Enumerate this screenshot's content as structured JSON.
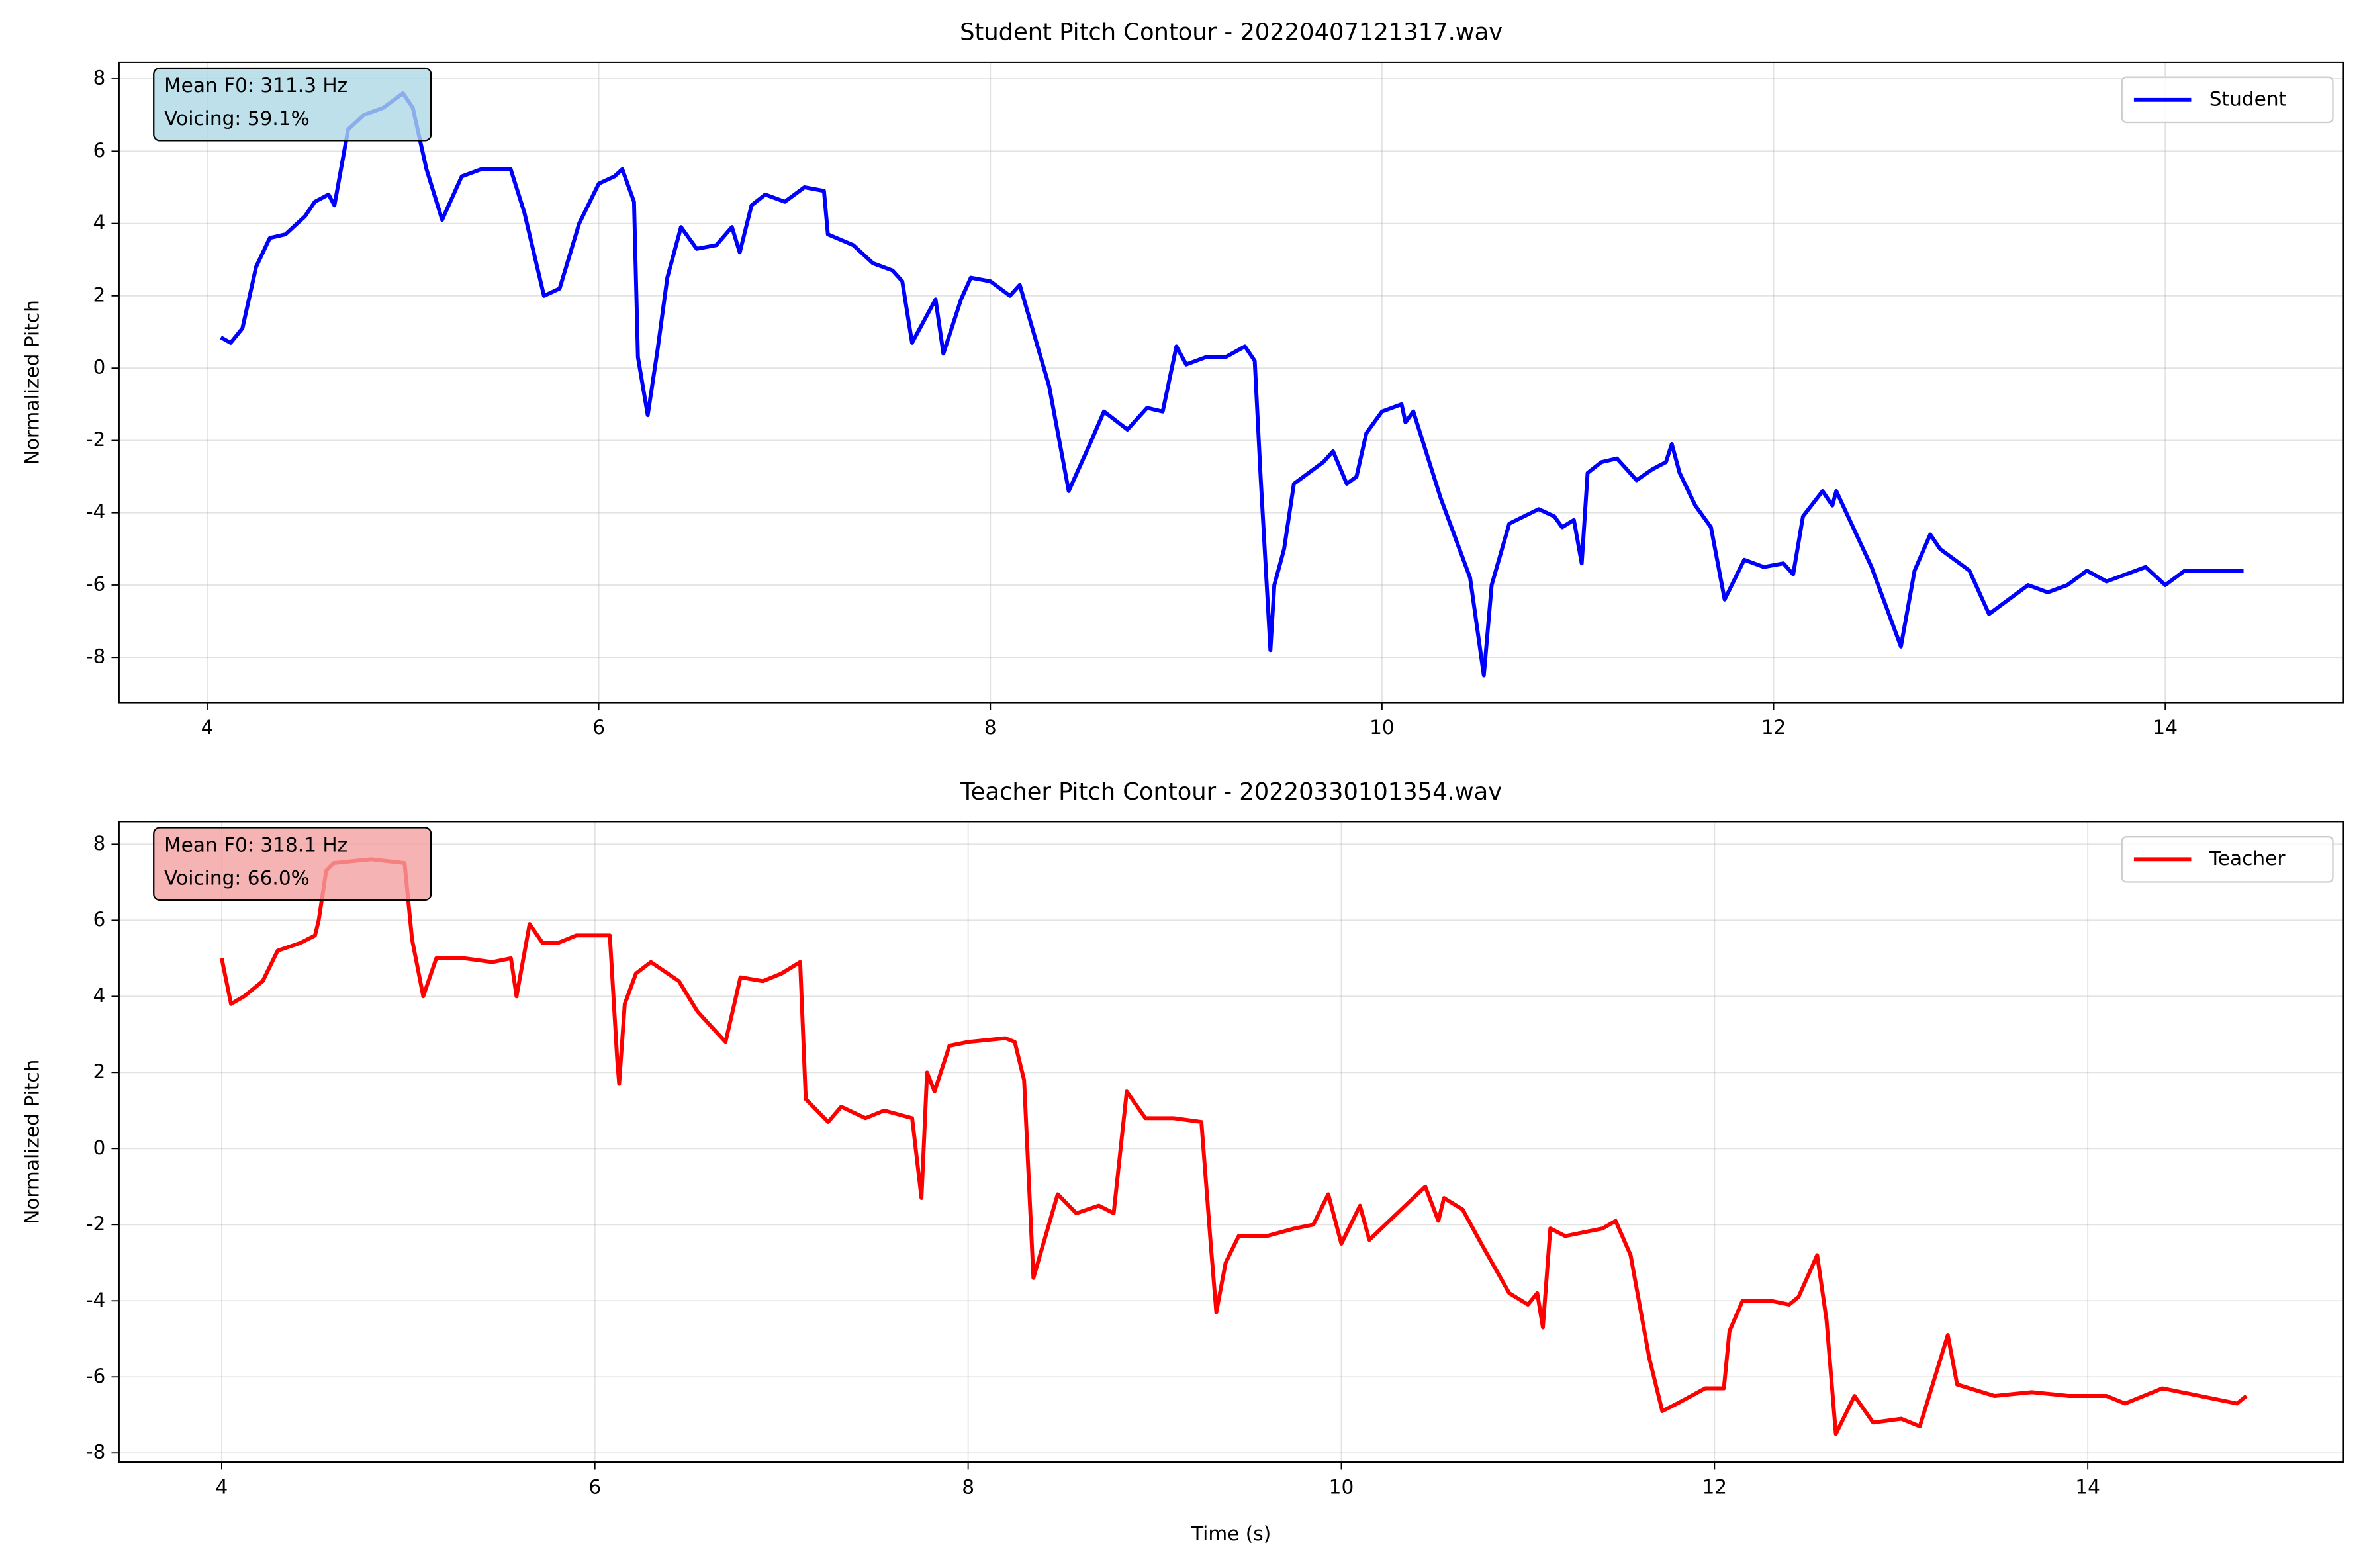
{
  "chart_data": [
    {
      "type": "line",
      "title": "Student Pitch Contour - 20220407121317.wav",
      "ylabel": "Normalized Pitch",
      "annotations": [
        "Mean F0: 311.3 Hz",
        "Voicing: 59.1%"
      ],
      "annotation_color": "#add8e6",
      "legend": "upper right",
      "grid": true,
      "xlim": [
        3.55,
        14.91
      ],
      "xticks": [
        4,
        6,
        8,
        10,
        12,
        14
      ],
      "ylim": [
        -9.25,
        8.46
      ],
      "yticks": [
        -8,
        -6,
        -4,
        -2,
        0,
        2,
        4,
        6,
        8
      ],
      "x": [
        4.07,
        4.12,
        4.18,
        4.25,
        4.32,
        4.4,
        4.5,
        4.55,
        4.62,
        4.65,
        4.72,
        4.8,
        4.9,
        5.0,
        5.05,
        5.12,
        5.2,
        5.3,
        5.4,
        5.55,
        5.62,
        5.72,
        5.8,
        5.9,
        6.0,
        6.08,
        6.12,
        6.18,
        6.2,
        6.25,
        6.3,
        6.35,
        6.42,
        6.5,
        6.6,
        6.68,
        6.72,
        6.78,
        6.85,
        6.95,
        7.05,
        7.15,
        7.17,
        7.3,
        7.4,
        7.5,
        7.55,
        7.6,
        7.72,
        7.76,
        7.85,
        7.9,
        8.0,
        8.1,
        8.15,
        8.3,
        8.4,
        8.5,
        8.58,
        8.7,
        8.8,
        8.88,
        8.95,
        9.0,
        9.1,
        9.2,
        9.3,
        9.35,
        9.38,
        9.43,
        9.45,
        9.5,
        9.55,
        9.6,
        9.7,
        9.75,
        9.82,
        9.87,
        9.92,
        10.0,
        10.1,
        10.12,
        10.16,
        10.3,
        10.45,
        10.52,
        10.56,
        10.65,
        10.8,
        10.88,
        10.92,
        10.98,
        11.02,
        11.05,
        11.12,
        11.2,
        11.3,
        11.38,
        11.45,
        11.48,
        11.52,
        11.6,
        11.68,
        11.75,
        11.85,
        11.95,
        12.05,
        12.1,
        12.15,
        12.25,
        12.3,
        12.32,
        12.5,
        12.65,
        12.72,
        12.8,
        12.85,
        13.0,
        13.1,
        13.2,
        13.3,
        13.4,
        13.5,
        13.6,
        13.7,
        13.8,
        13.9,
        14.0,
        14.1,
        14.2,
        14.3,
        14.4
      ],
      "series": [
        {
          "name": "Student",
          "color": "#0000ff",
          "values": [
            0.85,
            0.7,
            1.1,
            2.8,
            3.6,
            3.7,
            4.2,
            4.6,
            4.8,
            4.5,
            6.6,
            7.0,
            7.2,
            7.6,
            7.2,
            5.5,
            4.1,
            5.3,
            5.5,
            5.5,
            4.3,
            2.0,
            2.2,
            4.0,
            5.1,
            5.3,
            5.5,
            4.6,
            0.3,
            -1.3,
            0.5,
            2.5,
            3.9,
            3.3,
            3.4,
            3.9,
            3.2,
            4.5,
            4.8,
            4.6,
            5.0,
            4.9,
            3.7,
            3.4,
            2.9,
            2.7,
            2.4,
            0.7,
            1.9,
            0.4,
            1.9,
            2.5,
            2.4,
            2.0,
            2.3,
            -0.5,
            -3.4,
            -2.2,
            -1.2,
            -1.7,
            -1.1,
            -1.2,
            0.6,
            0.1,
            0.3,
            0.3,
            0.6,
            0.2,
            -3.0,
            -7.8,
            -6.0,
            -5.0,
            -3.2,
            -3.0,
            -2.6,
            -2.3,
            -3.2,
            -3.0,
            -1.8,
            -1.2,
            -1.0,
            -1.5,
            -1.2,
            -3.6,
            -5.8,
            -8.5,
            -6.0,
            -4.3,
            -3.9,
            -4.1,
            -4.4,
            -4.2,
            -5.4,
            -2.9,
            -2.6,
            -2.5,
            -3.1,
            -2.8,
            -2.6,
            -2.1,
            -2.9,
            -3.8,
            -4.4,
            -6.4,
            -5.3,
            -5.5,
            -5.4,
            -5.7,
            -4.1,
            -3.4,
            -3.8,
            -3.4,
            -5.5,
            -7.7,
            -5.6,
            -4.6,
            -5.0,
            -5.6,
            -6.8,
            -6.4,
            -6.0,
            -6.2,
            -6.0,
            -5.6,
            -5.9,
            -5.7,
            -5.5,
            -6.0,
            -5.6,
            -5.6,
            -5.6,
            -5.6
          ]
        }
      ]
    },
    {
      "type": "line",
      "title": "Teacher Pitch Contour - 20220330101354.wav",
      "ylabel": "Normalized Pitch",
      "xlabel": "Time (s)",
      "annotations": [
        "Mean F0: 318.1 Hz",
        "Voicing: 66.0%"
      ],
      "annotation_color": "#f4a0a0",
      "legend": "upper right",
      "grid": true,
      "xlim": [
        3.45,
        15.37
      ],
      "xticks": [
        4,
        6,
        8,
        10,
        12,
        14
      ],
      "ylim": [
        -8.24,
        8.59
      ],
      "yticks": [
        -8,
        -6,
        -4,
        -2,
        0,
        2,
        4,
        6,
        8
      ],
      "x": [
        4.0,
        4.05,
        4.12,
        4.22,
        4.3,
        4.42,
        4.5,
        4.52,
        4.56,
        4.6,
        4.8,
        4.98,
        5.02,
        5.08,
        5.15,
        5.3,
        5.45,
        5.55,
        5.58,
        5.65,
        5.72,
        5.8,
        5.9,
        6.0,
        6.08,
        6.12,
        6.13,
        6.16,
        6.22,
        6.3,
        6.45,
        6.55,
        6.7,
        6.78,
        6.9,
        7.0,
        7.1,
        7.13,
        7.25,
        7.32,
        7.45,
        7.55,
        7.7,
        7.75,
        7.78,
        7.82,
        7.9,
        8.0,
        8.2,
        8.25,
        8.3,
        8.35,
        8.48,
        8.58,
        8.7,
        8.78,
        8.85,
        8.95,
        9.1,
        9.25,
        9.3,
        9.33,
        9.38,
        9.45,
        9.6,
        9.75,
        9.85,
        9.93,
        10.0,
        10.1,
        10.15,
        10.45,
        10.52,
        10.55,
        10.65,
        10.75,
        10.9,
        11.0,
        11.05,
        11.08,
        11.12,
        11.2,
        11.3,
        11.4,
        11.47,
        11.55,
        11.65,
        11.72,
        11.8,
        11.95,
        12.05,
        12.08,
        12.15,
        12.3,
        12.4,
        12.45,
        12.55,
        12.6,
        12.65,
        12.75,
        12.85,
        13.0,
        13.1,
        13.25,
        13.3,
        13.5,
        13.7,
        13.9,
        14.1,
        14.2,
        14.4,
        14.6,
        14.8,
        14.85
      ],
      "series": [
        {
          "name": "Teacher",
          "color": "#ff0000",
          "values": [
            5.0,
            3.8,
            4.0,
            4.4,
            5.2,
            5.4,
            5.6,
            6.0,
            7.3,
            7.5,
            7.6,
            7.5,
            5.5,
            4.0,
            5.0,
            5.0,
            4.9,
            5.0,
            4.0,
            5.9,
            5.4,
            5.4,
            5.6,
            5.6,
            5.6,
            2.3,
            1.7,
            3.8,
            4.6,
            4.9,
            4.4,
            3.6,
            2.8,
            4.5,
            4.4,
            4.6,
            4.9,
            1.3,
            0.7,
            1.1,
            0.8,
            1.0,
            0.8,
            -1.3,
            2.0,
            1.5,
            2.7,
            2.8,
            2.9,
            2.8,
            1.8,
            -3.4,
            -1.2,
            -1.7,
            -1.5,
            -1.7,
            1.5,
            0.8,
            0.8,
            0.7,
            -2.5,
            -4.3,
            -3.0,
            -2.3,
            -2.3,
            -2.1,
            -2.0,
            -1.2,
            -2.5,
            -1.5,
            -2.4,
            -1.0,
            -1.9,
            -1.3,
            -1.6,
            -2.5,
            -3.8,
            -4.1,
            -3.8,
            -4.7,
            -2.1,
            -2.3,
            -2.2,
            -2.1,
            -1.9,
            -2.8,
            -5.5,
            -6.9,
            -6.7,
            -6.3,
            -6.3,
            -4.8,
            -4.0,
            -4.0,
            -4.1,
            -3.9,
            -2.8,
            -4.5,
            -7.5,
            -6.5,
            -7.2,
            -7.1,
            -7.3,
            -4.9,
            -6.2,
            -6.5,
            -6.4,
            -6.5,
            -6.5,
            -6.7,
            -6.3,
            -6.5,
            -6.7,
            -6.5
          ]
        }
      ]
    }
  ]
}
